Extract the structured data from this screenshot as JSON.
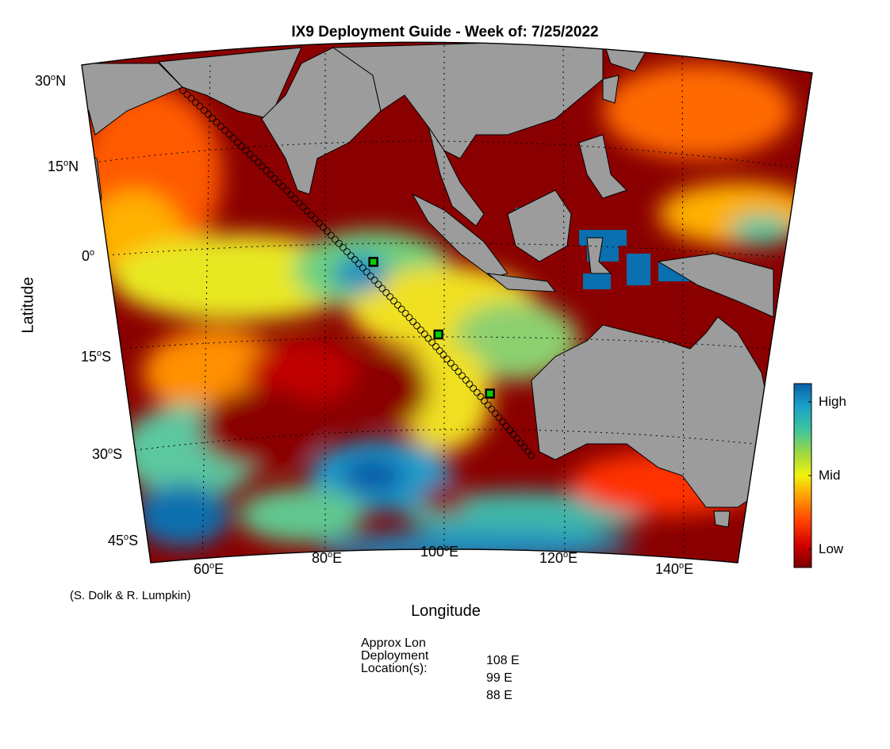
{
  "map": {
    "title": "IX9 Deployment Guide - Week of: 7/25/2022",
    "xlabel": "Longitude",
    "ylabel": "Latitude",
    "lat_ticks": [
      {
        "deg": "30",
        "hemi": "N"
      },
      {
        "deg": "15",
        "hemi": "N"
      },
      {
        "deg": "0",
        "hemi": ""
      },
      {
        "deg": "15",
        "hemi": "S"
      },
      {
        "deg": "30",
        "hemi": "S"
      },
      {
        "deg": "45",
        "hemi": "S"
      }
    ],
    "lon_ticks": [
      {
        "deg": "60",
        "hemi": "E"
      },
      {
        "deg": "80",
        "hemi": "E"
      },
      {
        "deg": "100",
        "hemi": "E"
      },
      {
        "deg": "120",
        "hemi": "E"
      },
      {
        "deg": "140",
        "hemi": "E"
      }
    ],
    "extent": {
      "lon": [
        50,
        150
      ],
      "lat": [
        -48,
        30
      ]
    },
    "credit": "(S. Dolk & R. Lumpkin)",
    "colorbar": {
      "labels": [
        "High",
        "Mid",
        "Low"
      ]
    },
    "colors": {
      "land": "#9c9c9c",
      "low": "#800000",
      "mid": "#f2f20e",
      "high": "#0a6fae",
      "track_marker": "#00d000"
    }
  },
  "deployment": {
    "label_lines": [
      "Approx Lon",
      "Deployment",
      "Location(s):"
    ],
    "locations": [
      "108 E",
      "99 E",
      "88 E"
    ],
    "points": [
      {
        "lon": 108,
        "lat": -21.8
      },
      {
        "lon": 99,
        "lat": -12.5
      },
      {
        "lon": 88,
        "lat": -1.0
      }
    ]
  },
  "track": {
    "start": {
      "lon": 57.5,
      "lat": 27.0
    },
    "end": {
      "lon": 115.5,
      "lat": -31.5
    },
    "count": 90
  }
}
